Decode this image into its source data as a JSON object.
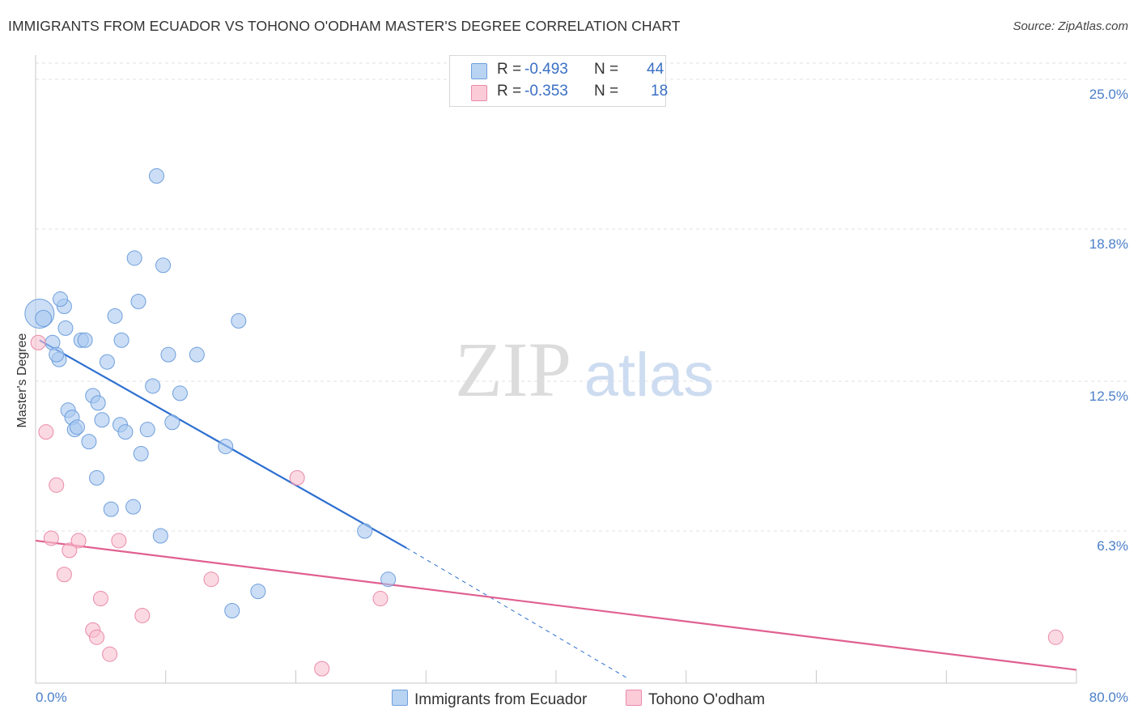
{
  "chart_data": {
    "type": "scatter",
    "title": "IMMIGRANTS FROM ECUADOR VS TOHONO O'ODHAM MASTER'S DEGREE CORRELATION CHART",
    "source": "Source: ZipAtlas.com",
    "ylabel": "Master's Degree",
    "xlim": [
      0,
      80
    ],
    "ylim": [
      0,
      25
    ],
    "x_tick_labels": [
      "0.0%",
      "80.0%"
    ],
    "y_ticks": [
      {
        "value": 25.0,
        "label": "25.0%"
      },
      {
        "value": 18.8,
        "label": "18.8%"
      },
      {
        "value": 12.5,
        "label": "12.5%"
      },
      {
        "value": 6.3,
        "label": "6.3%"
      }
    ],
    "watermark": {
      "zip": "ZIP",
      "atlas": "atlas"
    },
    "series": [
      {
        "name": "Immigrants from Ecuador",
        "color": "#a8c8f0",
        "edge": "#6f9fdc",
        "line_color": "#2d6fd0",
        "R": "-0.493",
        "N": "44",
        "trend": {
          "x0": 0.3,
          "y0": 14.2,
          "x1": 28.5,
          "y1": 5.6,
          "dash_to_x": 45.5,
          "dash_to_y": 0.2
        },
        "points": [
          [
            0.3,
            15.3,
            18
          ],
          [
            0.6,
            15.1,
            10
          ],
          [
            1.3,
            14.1,
            9
          ],
          [
            1.8,
            13.4,
            9
          ],
          [
            2.2,
            15.6,
            9
          ],
          [
            1.6,
            13.6,
            9
          ],
          [
            2.3,
            14.7,
            9
          ],
          [
            1.9,
            15.9,
            9
          ],
          [
            2.5,
            11.3,
            9
          ],
          [
            2.8,
            11.0,
            9
          ],
          [
            3.0,
            10.5,
            9
          ],
          [
            3.2,
            10.6,
            9
          ],
          [
            3.5,
            14.2,
            9
          ],
          [
            3.8,
            14.2,
            9
          ],
          [
            4.1,
            10.0,
            9
          ],
          [
            4.4,
            11.9,
            9
          ],
          [
            4.8,
            11.6,
            9
          ],
          [
            5.1,
            10.9,
            9
          ],
          [
            4.7,
            8.5,
            9
          ],
          [
            5.5,
            13.3,
            9
          ],
          [
            5.8,
            7.2,
            9
          ],
          [
            6.1,
            15.2,
            9
          ],
          [
            6.5,
            10.7,
            9
          ],
          [
            6.6,
            14.2,
            9
          ],
          [
            6.9,
            10.4,
            9
          ],
          [
            7.5,
            7.3,
            9
          ],
          [
            7.6,
            17.6,
            9
          ],
          [
            7.9,
            15.8,
            9
          ],
          [
            8.1,
            9.5,
            9
          ],
          [
            8.6,
            10.5,
            9
          ],
          [
            9.0,
            12.3,
            9
          ],
          [
            9.3,
            21.0,
            9
          ],
          [
            9.6,
            6.1,
            9
          ],
          [
            9.8,
            17.3,
            9
          ],
          [
            10.2,
            13.6,
            9
          ],
          [
            10.5,
            10.8,
            9
          ],
          [
            11.1,
            12.0,
            9
          ],
          [
            12.4,
            13.6,
            9
          ],
          [
            14.6,
            9.8,
            9
          ],
          [
            15.6,
            15.0,
            9
          ],
          [
            15.1,
            3.0,
            9
          ],
          [
            17.1,
            3.8,
            9
          ],
          [
            25.3,
            6.3,
            9
          ],
          [
            27.1,
            4.3,
            9
          ]
        ]
      },
      {
        "name": "Tohono O'odham",
        "color": "#f9c0d0",
        "edge": "#ea8aa8",
        "line_color": "#e06090",
        "R": "-0.353",
        "N": "18",
        "trend": {
          "x0": 0.0,
          "y0": 5.9,
          "x1": 80.0,
          "y1": 0.55
        },
        "points": [
          [
            0.2,
            14.1,
            9
          ],
          [
            0.8,
            10.4,
            9
          ],
          [
            1.2,
            6.0,
            9
          ],
          [
            1.6,
            8.2,
            9
          ],
          [
            2.2,
            4.5,
            9
          ],
          [
            2.6,
            5.5,
            9
          ],
          [
            3.3,
            5.9,
            9
          ],
          [
            5.0,
            3.5,
            9
          ],
          [
            4.4,
            2.2,
            9
          ],
          [
            4.7,
            1.9,
            9
          ],
          [
            5.7,
            1.2,
            9
          ],
          [
            6.4,
            5.9,
            9
          ],
          [
            8.2,
            2.8,
            9
          ],
          [
            13.5,
            4.3,
            9
          ],
          [
            20.1,
            8.5,
            9
          ],
          [
            22.0,
            0.6,
            9
          ],
          [
            26.5,
            3.5,
            9
          ],
          [
            78.4,
            1.9,
            9
          ]
        ]
      }
    ]
  },
  "legend": {
    "r_label": "R =",
    "n_label": "N ="
  }
}
